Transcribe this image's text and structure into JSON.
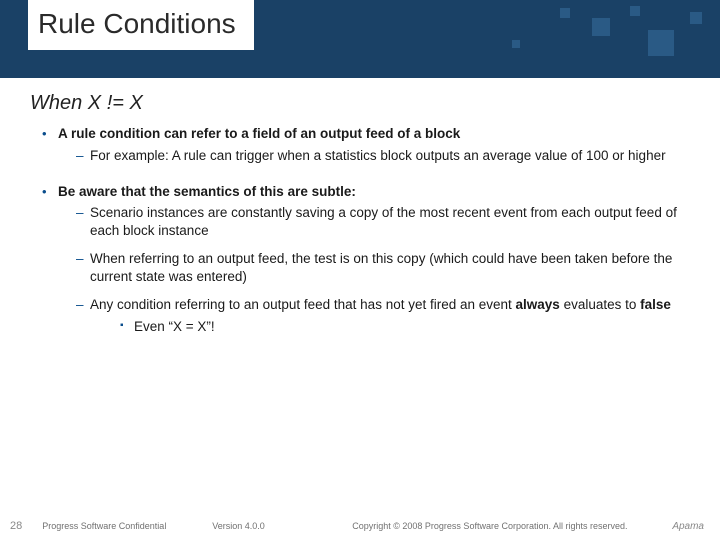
{
  "header": {
    "title": "Rule Conditions",
    "band_color": "#1a4166",
    "accent_color": "#2a5a85"
  },
  "subtitle": "When X != X",
  "bullets": [
    {
      "head": "A rule condition can refer to a field of an output feed of a block",
      "subs": [
        {
          "text": "For example: A rule can trigger when a statistics block outputs an average value of 100 or higher"
        }
      ]
    },
    {
      "head": "Be aware that the semantics of this are subtle:",
      "subs": [
        {
          "text": "Scenario instances are constantly saving a copy of the most recent event from each output feed of each block instance"
        },
        {
          "text": "When referring to an output feed, the test is on this copy (which could have been taken before the current state was entered)"
        },
        {
          "html": "Any condition referring to an output feed that has not yet fired an event <b>always</b> evaluates to <b>false</b>",
          "subsubs": [
            {
              "text": "Even “X = X”!"
            }
          ]
        }
      ]
    }
  ],
  "footer": {
    "page": "28",
    "confidential": "Progress Software Confidential",
    "version": "Version 4.0.0",
    "copyright": "Copyright © 2008 Progress Software Corporation. All rights reserved.",
    "logo": "Apama"
  }
}
